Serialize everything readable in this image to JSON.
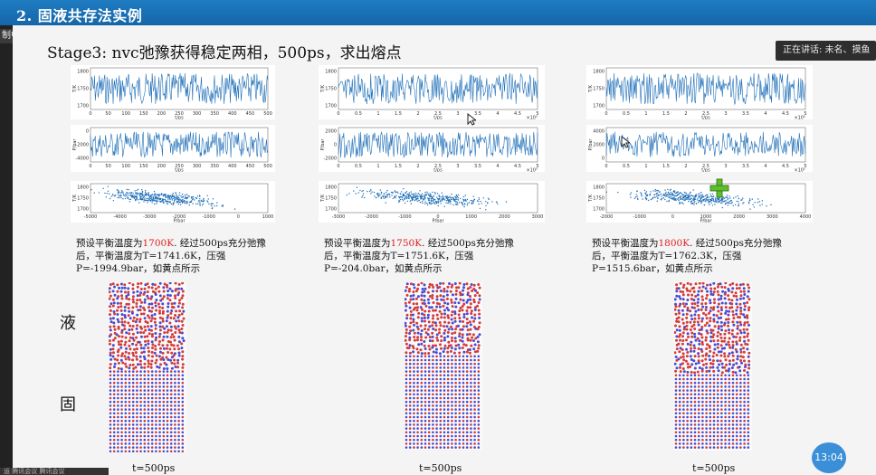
{
  "header": {
    "title": "2. 固液共存法实例"
  },
  "recording": {
    "tag": "制中"
  },
  "slide": {
    "stage_title": "Stage3: nvc弛豫获得稳定两相，500ps，求出熔点"
  },
  "meeting": {
    "speaking": "正在讲话: 未名、摸鱼猿"
  },
  "timer": {
    "value": "13:04"
  },
  "phases": {
    "liquid": "液",
    "solid": "固"
  },
  "colors": {
    "atom_red": "#d33a3a",
    "atom_blue": "#4a4acf",
    "line_blue": "#1f6fb8",
    "accent_red": "#d22222"
  },
  "panels": [
    {
      "caption": {
        "pre": "预设平衡温度为",
        "temp": "1700K",
        "post": ". 经过500ps充分弛豫后，平衡温度为T=1741.6K，压强P=-1994.9bar，如黄点所示"
      },
      "time_label": "t=500ps",
      "plot1": {
        "ylabel": "T/K",
        "xlabel": "t/ps",
        "yticks": [
          "1800",
          "1750",
          "1700"
        ],
        "xticks": [
          "0",
          "50",
          "100",
          "150",
          "200",
          "250",
          "300",
          "350",
          "400",
          "450",
          "500"
        ],
        "xmult": ""
      },
      "plot2": {
        "ylabel": "P/bar",
        "xlabel": "t/ps",
        "yticks": [
          "0",
          "-2000",
          "-4000"
        ],
        "xticks": [
          "0",
          "50",
          "100",
          "150",
          "200",
          "250",
          "300",
          "350",
          "400",
          "450",
          "500"
        ],
        "xmult": ""
      },
      "plot3": {
        "ylabel": "T/K",
        "xlabel": "P/bar",
        "yticks": [
          "1800",
          "1750",
          "1700"
        ],
        "xticks": [
          "-5000",
          "-4000",
          "-3000",
          "-2000",
          "-1000",
          "0",
          "1000"
        ]
      },
      "liquid_fraction": 0.52
    },
    {
      "caption": {
        "pre": "预设平衡温度为",
        "temp": "1750K",
        "post": ". 经过500ps充分弛豫后，平衡温度为T=1751.6K，压强P=-204.0bar，如黄点所示"
      },
      "time_label": "t=500ps",
      "plot1": {
        "ylabel": "T/K",
        "xlabel": "t/ps",
        "yticks": [
          "1800",
          "1750",
          "1700"
        ],
        "xticks": [
          "0",
          "0.5",
          "1",
          "1.5",
          "2",
          "2.5",
          "3",
          "3.5",
          "4",
          "4.5",
          "5"
        ],
        "xmult": "×10⁵"
      },
      "plot2": {
        "ylabel": "P/bar",
        "xlabel": "t/ps",
        "yticks": [
          "2000",
          "0",
          "-2000"
        ],
        "xticks": [
          "0",
          "0.5",
          "1",
          "1.5",
          "2",
          "2.5",
          "3",
          "3.5",
          "4",
          "4.5",
          "5"
        ],
        "xmult": "×10⁵"
      },
      "plot3": {
        "ylabel": "T/K",
        "xlabel": "P/bar",
        "yticks": [
          "1800",
          "1750",
          "1700"
        ],
        "xticks": [
          "-3000",
          "-2000",
          "-1000",
          "0",
          "1000",
          "2000",
          "3000"
        ]
      },
      "liquid_fraction": 0.42
    },
    {
      "caption": {
        "pre": "预设平衡温度为",
        "temp": "1800K",
        "post": ". 经过500ps充分弛豫后，平衡温度为T=1762.3K，压强P=1515.6bar，如黄点所示"
      },
      "time_label": "t=500ps",
      "plot1": {
        "ylabel": "T/K",
        "xlabel": "t/ps",
        "yticks": [
          "1800",
          "1750",
          "1700"
        ],
        "xticks": [
          "0",
          "0.5",
          "1",
          "1.5",
          "2",
          "2.5",
          "3",
          "3.5",
          "4",
          "4.5",
          "5"
        ],
        "xmult": "×10⁵"
      },
      "plot2": {
        "ylabel": "P/bar",
        "xlabel": "t/ps",
        "yticks": [
          "4000",
          "2000",
          "0"
        ],
        "xticks": [
          "0",
          "0.5",
          "1",
          "1.5",
          "2",
          "2.5",
          "3",
          "3.5",
          "4",
          "4.5",
          "5"
        ],
        "xmult": "×10⁵"
      },
      "plot3": {
        "ylabel": "T/K",
        "xlabel": "P/bar",
        "yticks": [
          "1800",
          "1750",
          "1700"
        ],
        "xticks": [
          "-2000",
          "-1000",
          "0",
          "1000",
          "2000",
          "3000",
          "4000"
        ]
      },
      "liquid_fraction": 0.55
    }
  ],
  "taskbar": {
    "text": "运 腾讯会议 腾讯会议"
  }
}
